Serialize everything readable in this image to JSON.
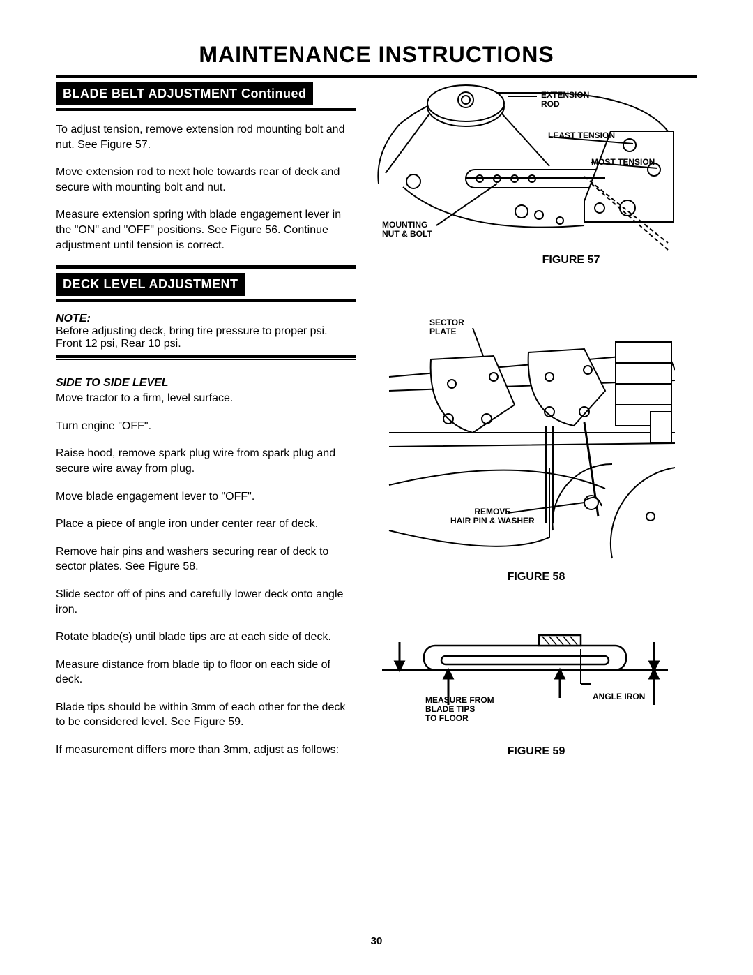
{
  "page": {
    "title": "MAINTENANCE INSTRUCTIONS",
    "number": "30"
  },
  "section1": {
    "heading": "BLADE BELT ADJUSTMENT Continued",
    "p1": "To adjust tension, remove extension rod mounting bolt and nut. See Figure 57.",
    "p2": "Move extension rod to next hole towards rear of deck and secure with mounting bolt and nut.",
    "p3": "Measure extension spring with blade engagement lever in the \"ON\" and \"OFF\" positions. See Figure 56. Continue adjustment until tension is correct."
  },
  "section2": {
    "heading": "DECK LEVEL ADJUSTMENT",
    "note_label": "NOTE:",
    "note_text": "Before adjusting deck, bring tire pressure to proper psi. Front 12 psi, Rear 10 psi.",
    "sub_label": "SIDE TO SIDE LEVEL",
    "p1": "Move tractor to a firm, level surface.",
    "p2": "Turn engine \"OFF\".",
    "p3": "Raise hood, remove spark plug wire from spark plug and secure wire away from plug.",
    "p4": "Move blade engagement lever to \"OFF\".",
    "p5": "Place a piece of angle iron under center rear of deck.",
    "p6": "Remove hair pins and washers securing rear of deck to sector plates. See Figure 58.",
    "p7": "Slide sector off of pins and carefully lower deck onto angle iron.",
    "p8": "Rotate blade(s) until blade tips are at each side of deck.",
    "p9": "Measure distance from blade tip to floor on each side of deck.",
    "p10": "Blade tips should be within 3mm of each other for the deck to be considered level. See Figure 59.",
    "p11": "If measurement differs more than 3mm, adjust as follows:"
  },
  "fig57": {
    "caption": "FIGURE 57",
    "labels": {
      "extension_rod": "EXTENSION\nROD",
      "least_tension": "LEAST TENSION",
      "most_tension": "MOST TENSION",
      "mounting": "MOUNTING\nNUT & BOLT"
    }
  },
  "fig58": {
    "caption": "FIGURE 58",
    "labels": {
      "sector_plate": "SECTOR\nPLATE",
      "remove": "REMOVE\nHAIR PIN & WASHER"
    }
  },
  "fig59": {
    "caption": "FIGURE 59",
    "labels": {
      "measure": "MEASURE FROM\nBLADE TIPS\nTO FLOOR",
      "angle_iron": "ANGLE IRON"
    }
  },
  "colors": {
    "ink": "#000000",
    "paper": "#ffffff"
  }
}
